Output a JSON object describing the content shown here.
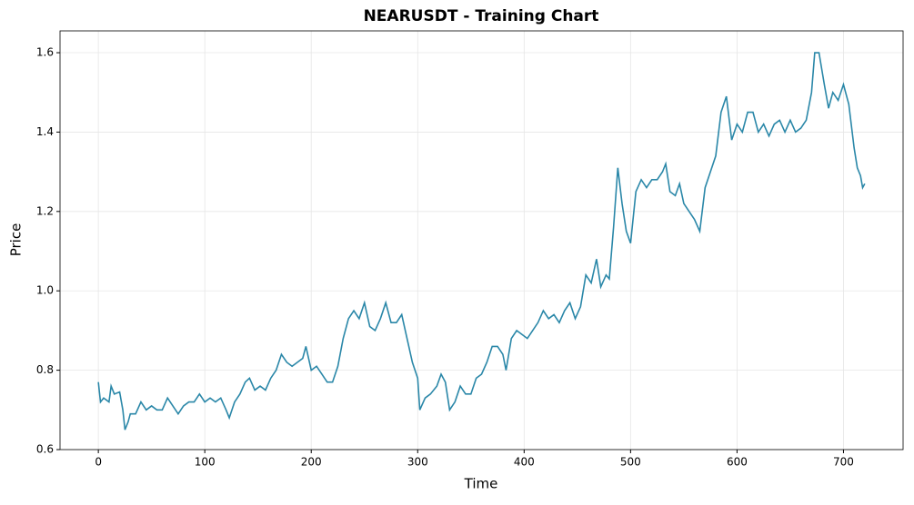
{
  "chart_data": {
    "type": "line",
    "title": "NEARUSDT - Training Chart",
    "x_label": "Time",
    "y_label": "Price",
    "x": [
      0,
      2,
      5,
      10,
      12,
      15,
      20,
      23,
      25,
      28,
      30,
      35,
      40,
      45,
      50,
      55,
      60,
      65,
      70,
      75,
      80,
      85,
      90,
      95,
      100,
      105,
      110,
      115,
      120,
      123,
      128,
      133,
      138,
      142,
      147,
      152,
      157,
      162,
      167,
      172,
      177,
      182,
      187,
      192,
      195,
      200,
      205,
      210,
      215,
      220,
      225,
      230,
      235,
      240,
      245,
      250,
      255,
      260,
      265,
      270,
      275,
      280,
      285,
      290,
      295,
      300,
      302,
      307,
      312,
      318,
      322,
      326,
      330,
      335,
      340,
      345,
      350,
      355,
      360,
      365,
      370,
      375,
      380,
      383,
      388,
      393,
      398,
      403,
      408,
      413,
      418,
      423,
      428,
      433,
      438,
      443,
      448,
      453,
      458,
      463,
      468,
      472,
      477,
      480,
      484,
      488,
      492,
      496,
      500,
      505,
      510,
      515,
      520,
      525,
      530,
      533,
      537,
      542,
      546,
      550,
      555,
      560,
      565,
      570,
      575,
      580,
      585,
      590,
      595,
      600,
      605,
      610,
      615,
      620,
      625,
      630,
      635,
      640,
      645,
      650,
      655,
      660,
      665,
      670,
      673,
      677,
      682,
      686,
      690,
      695,
      700,
      705,
      710,
      713,
      716,
      718,
      720
    ],
    "series": [
      {
        "name": "NEARUSDT",
        "color": "#2a87a8",
        "values": [
          0.77,
          0.72,
          0.73,
          0.72,
          0.76,
          0.74,
          0.745,
          0.7,
          0.65,
          0.67,
          0.69,
          0.69,
          0.72,
          0.7,
          0.71,
          0.7,
          0.7,
          0.73,
          0.71,
          0.69,
          0.71,
          0.72,
          0.72,
          0.74,
          0.72,
          0.73,
          0.72,
          0.73,
          0.7,
          0.68,
          0.72,
          0.74,
          0.77,
          0.78,
          0.75,
          0.76,
          0.75,
          0.78,
          0.8,
          0.84,
          0.82,
          0.81,
          0.82,
          0.83,
          0.86,
          0.8,
          0.81,
          0.79,
          0.77,
          0.77,
          0.81,
          0.88,
          0.93,
          0.95,
          0.93,
          0.97,
          0.91,
          0.9,
          0.93,
          0.97,
          0.92,
          0.92,
          0.94,
          0.88,
          0.82,
          0.78,
          0.7,
          0.73,
          0.74,
          0.76,
          0.79,
          0.77,
          0.7,
          0.72,
          0.76,
          0.74,
          0.74,
          0.78,
          0.79,
          0.82,
          0.86,
          0.86,
          0.84,
          0.8,
          0.88,
          0.9,
          0.89,
          0.88,
          0.9,
          0.92,
          0.95,
          0.93,
          0.94,
          0.92,
          0.95,
          0.97,
          0.93,
          0.96,
          1.04,
          1.02,
          1.08,
          1.01,
          1.04,
          1.03,
          1.16,
          1.31,
          1.22,
          1.15,
          1.12,
          1.25,
          1.28,
          1.26,
          1.28,
          1.28,
          1.3,
          1.32,
          1.25,
          1.24,
          1.27,
          1.22,
          1.2,
          1.18,
          1.15,
          1.26,
          1.3,
          1.34,
          1.45,
          1.49,
          1.38,
          1.42,
          1.4,
          1.45,
          1.45,
          1.4,
          1.42,
          1.39,
          1.42,
          1.43,
          1.4,
          1.43,
          1.4,
          1.41,
          1.43,
          1.5,
          1.6,
          1.6,
          1.52,
          1.46,
          1.5,
          1.48,
          1.52,
          1.47,
          1.36,
          1.31,
          1.29,
          1.26,
          1.27
        ]
      }
    ],
    "xlim": [
      -36,
      756
    ],
    "xticks": [
      0,
      100,
      200,
      300,
      400,
      500,
      600,
      700
    ],
    "ylim": [
      0.6,
      1.655
    ],
    "yticks": [
      0.6,
      0.8,
      {
        "value": 1,
        "label": "1.0"
      },
      1.2,
      1.4,
      1.6
    ],
    "grid": true
  }
}
